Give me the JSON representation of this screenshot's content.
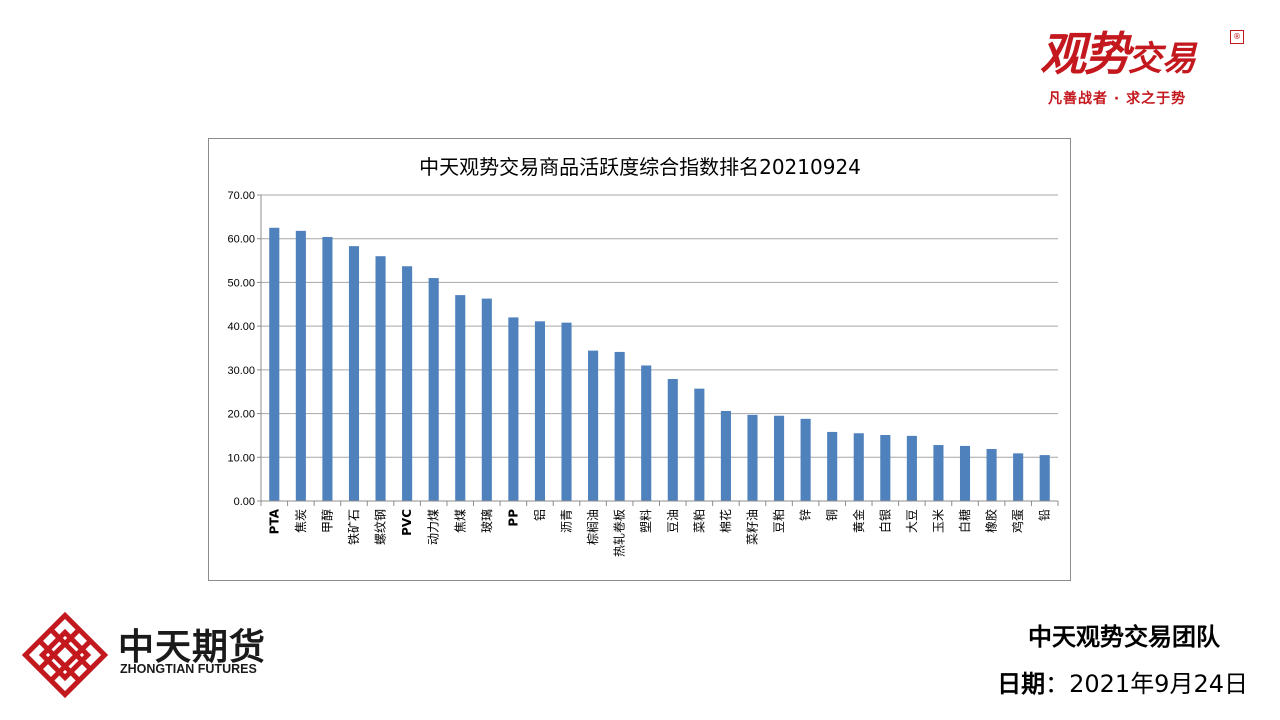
{
  "brand": {
    "title_main": "观势",
    "title_small": "交易",
    "stamp": "®",
    "slogan": "凡善战者 · 求之于势"
  },
  "company": {
    "name_cn": "中天期货",
    "name_en": "ZHONGTIAN FUTURES"
  },
  "footer": {
    "team": "中天观势交易团队",
    "date_label": "日期",
    "date_sep": "：",
    "date_value": "2021年9月24日"
  },
  "colors": {
    "bar": "#4f81bd",
    "brand_red": "#c3181e",
    "grid": "#a6a6a6"
  },
  "chart_data": {
    "type": "bar",
    "title": "中天观势交易商品活跃度综合指数排名20210924",
    "xlabel": "",
    "ylabel": "",
    "ylim": [
      0,
      70
    ],
    "yticks": [
      "0.00",
      "10.00",
      "20.00",
      "30.00",
      "40.00",
      "50.00",
      "60.00",
      "70.00"
    ],
    "grid": true,
    "legend": "none",
    "categories": [
      "PTA",
      "焦炭",
      "甲醇",
      "铁矿石",
      "螺纹钢",
      "PVC",
      "动力煤",
      "焦煤",
      "玻璃",
      "PP",
      "铝",
      "沥青",
      "棕榈油",
      "热轧卷板",
      "塑料",
      "豆油",
      "菜粕",
      "棉花",
      "菜籽油",
      "豆粕",
      "锌",
      "铜",
      "黄金",
      "白银",
      "大豆",
      "玉米",
      "白糖",
      "橡胶",
      "鸡蛋",
      "铅"
    ],
    "values": [
      62.5,
      61.8,
      60.4,
      58.3,
      56.0,
      53.7,
      51.0,
      47.1,
      46.3,
      42.0,
      41.1,
      40.8,
      34.4,
      34.1,
      31.0,
      27.9,
      25.7,
      20.6,
      19.7,
      19.5,
      18.8,
      15.8,
      15.5,
      15.1,
      14.9,
      12.8,
      12.6,
      11.9,
      10.9,
      10.5
    ]
  }
}
